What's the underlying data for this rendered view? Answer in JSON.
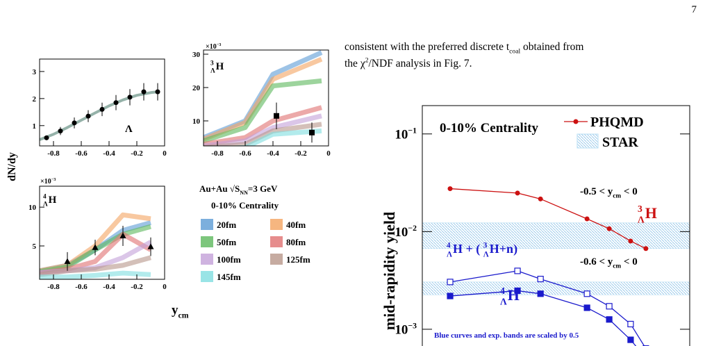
{
  "page_number": "7",
  "body_text": [
    [
      {
        "main": "consistent with the preferred discrete "
      },
      {
        "main": "t",
        "sub": "coal"
      },
      {
        "main": " obtained from"
      }
    ],
    [
      {
        "main": "the "
      },
      {
        "main": "χ",
        "sup": "2"
      },
      {
        "main": "/NDF analysis in Fig. 7."
      }
    ]
  ],
  "left_figure": {
    "y_label": [
      {
        "main": "dN/dy"
      }
    ],
    "x_label": [
      {
        "main": "y",
        "sub": "cm"
      }
    ],
    "system": [
      {
        "main": "Au+Au "
      },
      {
        "main": "√S",
        "sub": "NN"
      },
      {
        "main": "=3 GeV"
      }
    ],
    "centrality": [
      {
        "main": "0-10% Centrality"
      }
    ]
  },
  "chart_data": [
    {
      "type": "line",
      "xlim": [
        -0.9,
        0
      ],
      "xticks": [
        -0.8,
        -0.6,
        -0.4,
        -0.2,
        0
      ],
      "ylim": [
        0.25,
        3.46
      ],
      "yticks": [
        1,
        2,
        3
      ],
      "label": [
        {
          "main": "Λ"
        }
      ],
      "series": [
        {
          "color": "#4f7f6f",
          "x": [
            -0.9,
            -0.8,
            -0.7,
            -0.6,
            -0.5,
            -0.4,
            -0.3,
            -0.2,
            -0.1,
            -0.05
          ],
          "values": [
            0.48,
            0.68,
            0.93,
            1.2,
            1.47,
            1.73,
            1.95,
            2.12,
            2.22,
            2.25
          ]
        }
      ],
      "points": {
        "marker": "circle",
        "x": [
          -0.85,
          -0.75,
          -0.65,
          -0.55,
          -0.45,
          -0.35,
          -0.25,
          -0.15,
          -0.05
        ],
        "values": [
          0.55,
          0.8,
          1.1,
          1.35,
          1.6,
          1.85,
          2.05,
          2.25,
          2.25
        ],
        "errors": [
          0.08,
          0.15,
          0.2,
          0.22,
          0.25,
          0.28,
          0.3,
          0.32,
          0.32
        ]
      }
    },
    {
      "type": "line",
      "xlim": [
        -0.9,
        0
      ],
      "xticks": [
        -0.8,
        -0.6,
        -0.4,
        -0.2,
        0
      ],
      "ylim": [
        2.5,
        31.25
      ],
      "yticks": [
        10,
        20,
        30
      ],
      "y_multiplier": [
        {
          "main": "×10",
          "sup": "−3"
        }
      ],
      "label": [
        {
          "pre_sup": "3",
          "pre_sub": "Λ",
          "main": "H"
        }
      ],
      "series": [
        {
          "color": "#5b9bd5",
          "x": [
            -0.9,
            -0.6,
            -0.4,
            -0.05
          ],
          "values": [
            5,
            10,
            24,
            30.5
          ]
        },
        {
          "color": "#f4a460",
          "x": [
            -0.9,
            -0.6,
            -0.4,
            -0.05
          ],
          "values": [
            4.5,
            9.5,
            22.5,
            28.5
          ]
        },
        {
          "color": "#5cb85c",
          "x": [
            -0.9,
            -0.6,
            -0.4,
            -0.05
          ],
          "values": [
            4,
            8,
            20.5,
            22
          ]
        },
        {
          "color": "#e07070",
          "x": [
            -0.9,
            -0.6,
            -0.4,
            -0.05
          ],
          "values": [
            3,
            5,
            10,
            14
          ]
        },
        {
          "color": "#c3a0d8",
          "x": [
            -0.9,
            -0.6,
            -0.4,
            -0.05
          ],
          "values": [
            2.5,
            4,
            8,
            11.5
          ]
        },
        {
          "color": "#b8968a",
          "x": [
            -0.9,
            -0.6,
            -0.4,
            -0.05
          ],
          "values": [
            2,
            3,
            7,
            9
          ]
        },
        {
          "color": "#7fdde0",
          "x": [
            -0.9,
            -0.6,
            -0.4,
            -0.05
          ],
          "values": [
            1.5,
            2,
            6,
            7
          ]
        }
      ],
      "points": {
        "marker": "square",
        "x": [
          -0.375,
          -0.12
        ],
        "values": [
          11.5,
          6.5
        ],
        "errors": [
          4,
          3
        ]
      }
    },
    {
      "type": "line",
      "xlim": [
        -0.9,
        0
      ],
      "xticks": [
        -0.8,
        -0.6,
        -0.4,
        -0.2,
        0
      ],
      "ylim": [
        0.7,
        12.7
      ],
      "yticks": [
        5,
        10
      ],
      "y_multiplier": [
        {
          "main": "×10",
          "sup": "−3"
        }
      ],
      "label": [
        {
          "pre_sup": "4",
          "pre_sub": "Λ",
          "main": "H"
        }
      ],
      "series": [
        {
          "name": "20fm",
          "color": "#5b9bd5",
          "x": [
            -0.9,
            -0.7,
            -0.5,
            -0.3,
            -0.1
          ],
          "values": [
            1.8,
            2.5,
            4.5,
            7,
            8
          ]
        },
        {
          "name": "40fm",
          "color": "#f4a460",
          "x": [
            -0.9,
            -0.7,
            -0.5,
            -0.3,
            -0.1
          ],
          "values": [
            1.8,
            2.5,
            5,
            9,
            8.5
          ]
        },
        {
          "name": "50fm",
          "color": "#5cb85c",
          "x": [
            -0.9,
            -0.7,
            -0.5,
            -0.3,
            -0.1
          ],
          "values": [
            1.7,
            2.3,
            4.5,
            6.5,
            7.5
          ]
        },
        {
          "name": "80fm",
          "color": "#e07070",
          "x": [
            -0.9,
            -0.7,
            -0.5,
            -0.3,
            -0.1
          ],
          "values": [
            1.5,
            2,
            3,
            6.5,
            4.5
          ]
        },
        {
          "name": "100fm",
          "color": "#c3a0d8",
          "x": [
            -0.9,
            -0.7,
            -0.5,
            -0.3,
            -0.1
          ],
          "values": [
            1.6,
            1.8,
            2.2,
            3.5,
            5.5
          ]
        },
        {
          "name": "125fm",
          "color": "#b8968a",
          "x": [
            -0.9,
            -0.7,
            -0.5,
            -0.3,
            -0.1
          ],
          "values": [
            1.3,
            1.8,
            2,
            2.5,
            3.5
          ]
        },
        {
          "name": "145fm",
          "color": "#7fdde0",
          "x": [
            -0.9,
            -0.7,
            -0.5,
            -0.3,
            -0.1
          ],
          "values": [
            1,
            1,
            1.2,
            1.5,
            1.3
          ]
        }
      ],
      "points": {
        "marker": "triangle",
        "x": [
          -0.7,
          -0.5,
          -0.3,
          -0.1
        ],
        "values": [
          3,
          4.8,
          6.3,
          4.9
        ],
        "errors": [
          1.2,
          1,
          1.3,
          1.2
        ]
      }
    },
    {
      "type": "line",
      "log_y": true,
      "xlim": [
        0,
        1
      ],
      "ylim": [
        0.00047,
        0.195
      ],
      "yticks": [
        {
          "value": 0.1,
          "label": "10",
          "exponent": "−1"
        },
        {
          "value": 0.01,
          "label": "10",
          "exponent": "−2"
        },
        {
          "value": 0.001,
          "label": "10",
          "exponent": "−3"
        }
      ],
      "y_label": [
        {
          "main": "mid-rapidity yield"
        }
      ],
      "legend": {
        "model": "PHQMD",
        "experiment": "STAR"
      },
      "band_color": "#b5dcf3",
      "bands": [
        [
          0.0067,
          0.0123
        ],
        [
          0.00225,
          0.00305
        ]
      ],
      "annotations": [
        [
          {
            "main": "0-10% Centrality"
          }
        ],
        [
          {
            "main": "-0.5 < y",
            "sub": "cm"
          },
          {
            "main": " < 0"
          }
        ],
        [
          {
            "main": "-0.6 < y",
            "sub": "cm"
          },
          {
            "main": " < 0"
          }
        ],
        [
          {
            "main": "Blue curves and exp. bands are scaled by 0.5"
          }
        ]
      ],
      "series": [
        {
          "label": [
            {
              "pre_sup": "3",
              "pre_sub": "Λ",
              "main": "H"
            }
          ],
          "color": "#cc1111",
          "marker": "filled_circle",
          "x": [
            0.104,
            0.356,
            0.442,
            0.616,
            0.699,
            0.779,
            0.836
          ],
          "values": [
            0.0275,
            0.0248,
            0.0216,
            0.0135,
            0.0107,
            0.008,
            0.0067
          ]
        },
        {
          "label": [
            {
              "pre_sup": "4",
              "pre_sub": "Λ",
              "main": "H"
            },
            {
              "main": " + ( "
            },
            {
              "pre_sup": "3",
              "pre_sub": "Λ",
              "main": "H"
            },
            {
              "main": "+n)"
            }
          ],
          "color": "#1a1acc",
          "marker": "open_square",
          "x": [
            0.104,
            0.356,
            0.442,
            0.616,
            0.699,
            0.779,
            0.836
          ],
          "values": [
            0.00305,
            0.00396,
            0.00327,
            0.00231,
            0.00172,
            0.00113,
            0.000635
          ]
        },
        {
          "label": [
            {
              "pre_sup": "4",
              "pre_sub": "Λ",
              "main": "H"
            }
          ],
          "color": "#1a1acc",
          "marker": "filled_square",
          "x": [
            0.104,
            0.356,
            0.442,
            0.616,
            0.699,
            0.779,
            0.836
          ],
          "values": [
            0.00219,
            0.00248,
            0.00231,
            0.00166,
            0.00126,
            0.00078,
            0.000507
          ]
        }
      ]
    }
  ]
}
